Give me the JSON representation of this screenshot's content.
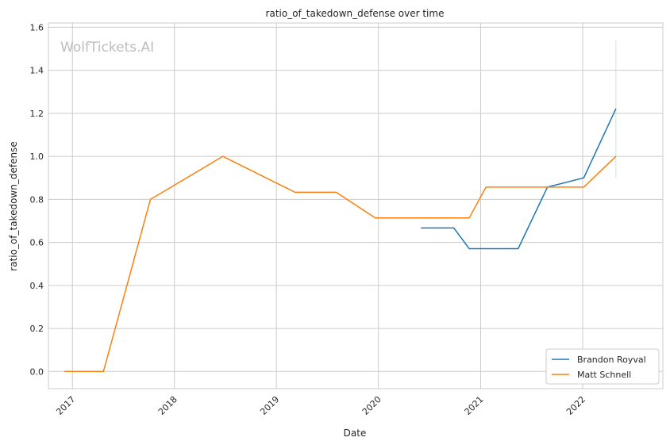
{
  "watermark": "WolfTickets.AI",
  "chart_data": {
    "type": "line",
    "title": "ratio_of_takedown_defense over time",
    "xlabel": "Date",
    "ylabel": "ratio_of_takedown_defense",
    "xlim": [
      "2016-10-07",
      "2022-10-15"
    ],
    "ylim": [
      -0.08,
      1.62
    ],
    "x_ticks": [
      "2017",
      "2018",
      "2019",
      "2020",
      "2021",
      "2022"
    ],
    "y_ticks": [
      "0.0",
      "0.2",
      "0.4",
      "0.6",
      "0.8",
      "1.0",
      "1.2",
      "1.4",
      "1.6"
    ],
    "grid": true,
    "legend_position": "lower-right",
    "series": [
      {
        "name": "Brandon Royval",
        "color": "#1f77b4",
        "points": [
          [
            "2020-06-01",
            0.667
          ],
          [
            "2020-09-27",
            0.667
          ],
          [
            "2020-11-21",
            0.571
          ],
          [
            "2021-05-15",
            0.571
          ],
          [
            "2021-08-28",
            0.857
          ],
          [
            "2022-01-05",
            0.9
          ],
          [
            "2022-04-30",
            1.222
          ]
        ]
      },
      {
        "name": "Matt Schnell",
        "color": "#ff7f0e",
        "points": [
          [
            "2016-12-03",
            0.0
          ],
          [
            "2017-04-22",
            0.0
          ],
          [
            "2017-10-07",
            0.8
          ],
          [
            "2018-06-23",
            1.0
          ],
          [
            "2019-03-09",
            0.833
          ],
          [
            "2019-08-03",
            0.833
          ],
          [
            "2019-12-21",
            0.714
          ],
          [
            "2020-11-21",
            0.714
          ],
          [
            "2021-01-20",
            0.857
          ],
          [
            "2022-01-05",
            0.857
          ],
          [
            "2022-04-30",
            1.0
          ]
        ]
      }
    ]
  }
}
